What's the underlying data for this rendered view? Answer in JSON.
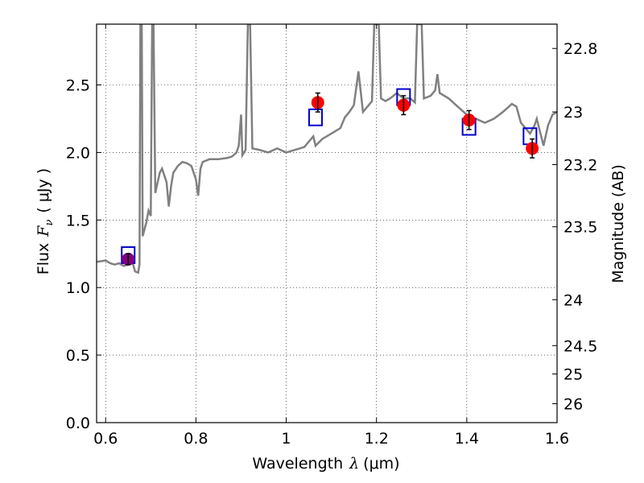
{
  "chart_data": {
    "type": "scatter",
    "xlabel": "Wavelength",
    "xlabel_symbol": "λ",
    "xlabel_unit": "(μm)",
    "ylabel": "Flux",
    "ylabel_symbol": "F",
    "ylabel_subscript": "ν",
    "ylabel_unit": "( μJy )",
    "y2label": "Magnitude (AB)",
    "xlim": [
      0.58,
      1.6
    ],
    "ylim": [
      0.0,
      2.95
    ],
    "grid": true,
    "x_ticks": [
      0.6,
      0.8,
      1.0,
      1.2,
      1.4,
      1.6
    ],
    "x_tick_labels": [
      "0.6",
      "0.8",
      "1",
      "1.2",
      "1.4",
      "1.6"
    ],
    "y_ticks": [
      0.0,
      0.5,
      1.0,
      1.5,
      2.0,
      2.5
    ],
    "y_tick_labels": [
      "0.0",
      "0.5",
      "1.0",
      "1.5",
      "2.0",
      "2.5"
    ],
    "y2_ticks": [
      {
        "label": "22.8",
        "flux": 2.77
      },
      {
        "label": "23",
        "flux": 2.3
      },
      {
        "label": "23.2",
        "flux": 1.91
      },
      {
        "label": "23.5",
        "flux": 1.45
      },
      {
        "label": "24",
        "flux": 0.91
      },
      {
        "label": "24.5",
        "flux": 0.57
      },
      {
        "label": "25",
        "flux": 0.36
      },
      {
        "label": "26",
        "flux": 0.14
      }
    ],
    "series": [
      {
        "kind": "model_spectrum",
        "color": "#808080",
        "points": [
          [
            0.58,
            1.19
          ],
          [
            0.6,
            1.2
          ],
          [
            0.61,
            1.18
          ],
          [
            0.62,
            1.17
          ],
          [
            0.63,
            1.18
          ],
          [
            0.64,
            1.16
          ],
          [
            0.65,
            1.17
          ],
          [
            0.66,
            1.18
          ],
          [
            0.665,
            1.12
          ],
          [
            0.672,
            1.11
          ],
          [
            0.675,
            1.17
          ],
          [
            0.677,
            2.95
          ],
          [
            0.68,
            2.95
          ],
          [
            0.682,
            1.38
          ],
          [
            0.69,
            1.48
          ],
          [
            0.695,
            1.57
          ],
          [
            0.7,
            1.53
          ],
          [
            0.703,
            2.95
          ],
          [
            0.706,
            2.95
          ],
          [
            0.71,
            1.7
          ],
          [
            0.72,
            1.85
          ],
          [
            0.725,
            1.88
          ],
          [
            0.735,
            1.78
          ],
          [
            0.74,
            1.6
          ],
          [
            0.745,
            1.75
          ],
          [
            0.75,
            1.85
          ],
          [
            0.76,
            1.9
          ],
          [
            0.77,
            1.93
          ],
          [
            0.78,
            1.92
          ],
          [
            0.79,
            1.9
          ],
          [
            0.8,
            1.8
          ],
          [
            0.805,
            1.68
          ],
          [
            0.81,
            1.88
          ],
          [
            0.815,
            1.93
          ],
          [
            0.83,
            1.95
          ],
          [
            0.85,
            1.95
          ],
          [
            0.87,
            1.96
          ],
          [
            0.88,
            1.97
          ],
          [
            0.89,
            2.0
          ],
          [
            0.895,
            2.05
          ],
          [
            0.9,
            2.28
          ],
          [
            0.903,
            1.98
          ],
          [
            0.91,
            2.02
          ],
          [
            0.915,
            2.95
          ],
          [
            0.92,
            2.95
          ],
          [
            0.925,
            2.03
          ],
          [
            0.94,
            2.02
          ],
          [
            0.96,
            2.0
          ],
          [
            0.98,
            2.03
          ],
          [
            1.0,
            2.0
          ],
          [
            1.02,
            2.02
          ],
          [
            1.04,
            2.04
          ],
          [
            1.05,
            2.08
          ],
          [
            1.06,
            2.12
          ],
          [
            1.065,
            2.05
          ],
          [
            1.08,
            2.1
          ],
          [
            1.1,
            2.14
          ],
          [
            1.12,
            2.18
          ],
          [
            1.13,
            2.26
          ],
          [
            1.14,
            2.3
          ],
          [
            1.15,
            2.35
          ],
          [
            1.16,
            2.6
          ],
          [
            1.17,
            2.3
          ],
          [
            1.18,
            2.34
          ],
          [
            1.19,
            2.38
          ],
          [
            1.195,
            2.95
          ],
          [
            1.205,
            2.95
          ],
          [
            1.21,
            2.4
          ],
          [
            1.22,
            2.38
          ],
          [
            1.23,
            2.4
          ],
          [
            1.245,
            2.44
          ],
          [
            1.26,
            2.4
          ],
          [
            1.275,
            2.4
          ],
          [
            1.285,
            2.37
          ],
          [
            1.29,
            2.95
          ],
          [
            1.3,
            2.95
          ],
          [
            1.305,
            2.4
          ],
          [
            1.32,
            2.42
          ],
          [
            1.33,
            2.46
          ],
          [
            1.335,
            2.58
          ],
          [
            1.34,
            2.44
          ],
          [
            1.36,
            2.4
          ],
          [
            1.38,
            2.34
          ],
          [
            1.4,
            2.28
          ],
          [
            1.42,
            2.25
          ],
          [
            1.44,
            2.22
          ],
          [
            1.46,
            2.25
          ],
          [
            1.48,
            2.3
          ],
          [
            1.5,
            2.36
          ],
          [
            1.51,
            2.34
          ],
          [
            1.52,
            2.22
          ],
          [
            1.53,
            2.18
          ],
          [
            1.54,
            2.14
          ],
          [
            1.55,
            2.2
          ],
          [
            1.555,
            2.25
          ],
          [
            1.57,
            2.05
          ],
          [
            1.58,
            2.2
          ],
          [
            1.59,
            2.28
          ],
          [
            1.6,
            2.3
          ]
        ]
      },
      {
        "kind": "observed",
        "marker": "circle",
        "color": "#ff0000",
        "points": [
          {
            "x": 1.07,
            "y": 2.37,
            "err": 0.07
          },
          {
            "x": 1.26,
            "y": 2.35,
            "err": 0.07
          },
          {
            "x": 1.405,
            "y": 2.24,
            "err": 0.07
          },
          {
            "x": 1.545,
            "y": 2.03,
            "err": 0.07
          }
        ]
      },
      {
        "kind": "observed_first",
        "marker": "circle",
        "color": "#800080",
        "points": [
          {
            "x": 0.65,
            "y": 1.21,
            "err": 0.04
          }
        ]
      },
      {
        "kind": "model_photometry",
        "marker": "square",
        "color": "#0000cc",
        "points": [
          {
            "x": 0.65,
            "y": 1.24
          },
          {
            "x": 1.065,
            "y": 2.26
          },
          {
            "x": 1.26,
            "y": 2.41
          },
          {
            "x": 1.405,
            "y": 2.19
          },
          {
            "x": 1.54,
            "y": 2.12
          }
        ]
      }
    ]
  }
}
